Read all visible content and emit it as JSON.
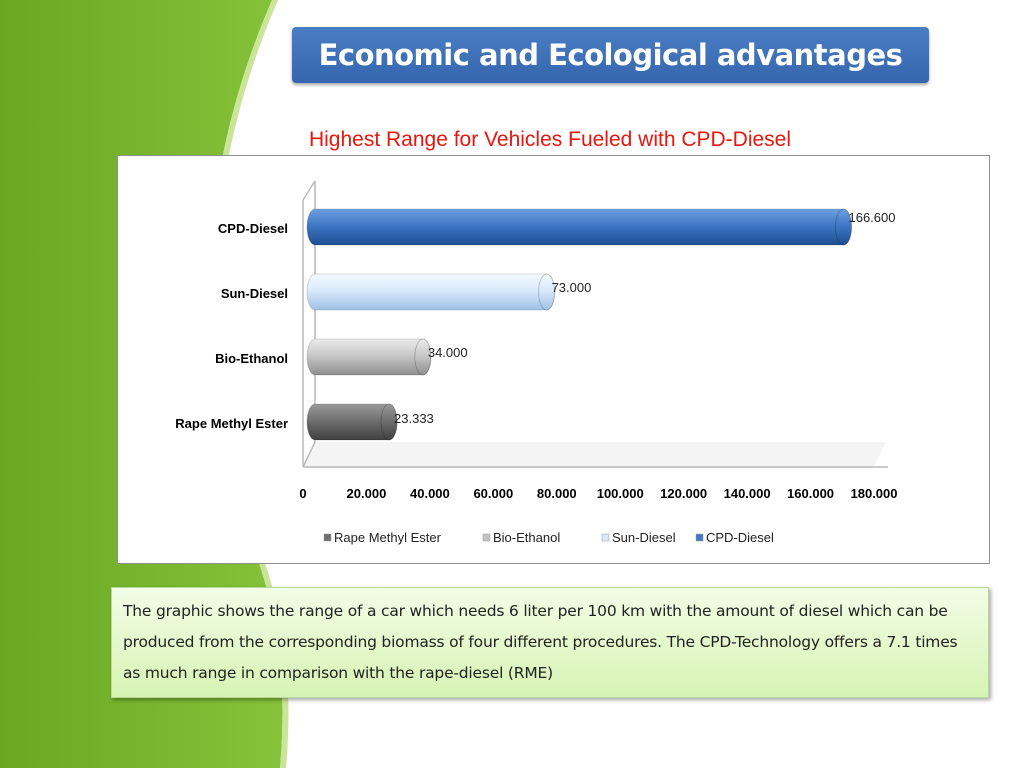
{
  "slide": {
    "title": "Economic and Ecological advantages",
    "subtitle": "Highest Range for Vehicles Fueled with CPD-Diesel",
    "note": "The graphic shows the range of a car which needs 6 liter per 100 km with the amount of diesel which can be produced from the corresponding biomass of four different procedures. The CPD-Technology offers a 7.1 times as much range in comparison with the rape-diesel (RME)",
    "colors": {
      "green": "#7cb82f",
      "title_bg": "#3a6db3",
      "subtitle": "#e8160c"
    }
  },
  "chart_data": {
    "type": "bar",
    "orientation": "horizontal",
    "style": "3d-cylinder",
    "categories": [
      "Rape Methyl Ester",
      "Bio-Ethanol",
      "Sun-Diesel",
      "CPD-Diesel"
    ],
    "values": [
      23.333,
      34.0,
      73.0,
      166.6
    ],
    "data_labels": [
      "23.333",
      "34.000",
      "73.000",
      "166.600"
    ],
    "xlim": [
      0,
      180
    ],
    "x_ticks": [
      0,
      20,
      40,
      60,
      80,
      100,
      120,
      140,
      160,
      180
    ],
    "x_tick_labels": [
      "0",
      "20.000",
      "40.000",
      "60.000",
      "80.000",
      "100.000",
      "120.000",
      "140.000",
      "160.000",
      "180.000"
    ],
    "legend": {
      "position": "bottom",
      "entries": [
        "Rape Methyl Ester",
        "Bio-Ethanol",
        "Sun-Diesel",
        "CPD-Diesel"
      ]
    },
    "colors": [
      "#6f6f6f",
      "#c4c4c4",
      "#d9eafb",
      "#3f78c6"
    ],
    "grid": false
  }
}
